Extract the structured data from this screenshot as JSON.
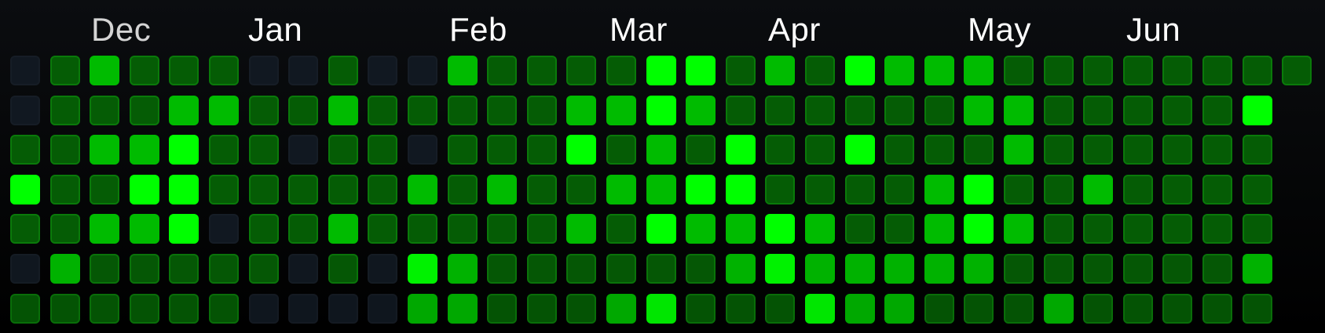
{
  "heatmap": {
    "month_labels": [
      "Dec",
      "Jan",
      "Feb",
      "Mar",
      "Apr",
      "May",
      "Jun"
    ],
    "colors": {
      "level0": "#111821",
      "level1": "#055c05",
      "level2": "#00bb00",
      "level3": "#00ff00",
      "border_active": "#0a7a0a",
      "border_empty": "#161d26"
    },
    "grid": [
      [
        0,
        1,
        2,
        1,
        1,
        1,
        0,
        0,
        1,
        0,
        0,
        2,
        1,
        1,
        1,
        1,
        3,
        3,
        1,
        2,
        1,
        3,
        2,
        2,
        2,
        1,
        1,
        1,
        1,
        1,
        1,
        1,
        1
      ],
      [
        0,
        1,
        1,
        1,
        2,
        2,
        1,
        1,
        2,
        1,
        1,
        1,
        1,
        1,
        2,
        2,
        3,
        2,
        1,
        1,
        1,
        1,
        1,
        1,
        2,
        2,
        1,
        1,
        1,
        1,
        1,
        3,
        null
      ],
      [
        1,
        1,
        2,
        2,
        3,
        1,
        1,
        0,
        1,
        1,
        0,
        1,
        1,
        1,
        3,
        1,
        2,
        1,
        3,
        1,
        1,
        3,
        1,
        1,
        1,
        2,
        1,
        1,
        1,
        1,
        1,
        1,
        null
      ],
      [
        3,
        1,
        1,
        3,
        3,
        1,
        1,
        1,
        1,
        1,
        2,
        1,
        2,
        1,
        1,
        2,
        2,
        3,
        3,
        1,
        1,
        1,
        1,
        2,
        3,
        1,
        1,
        2,
        1,
        1,
        1,
        1,
        null
      ],
      [
        1,
        1,
        2,
        2,
        3,
        0,
        1,
        1,
        2,
        1,
        1,
        1,
        1,
        1,
        2,
        1,
        3,
        2,
        2,
        3,
        2,
        1,
        1,
        2,
        3,
        2,
        1,
        1,
        1,
        1,
        1,
        1,
        null
      ],
      [
        0,
        2,
        1,
        1,
        1,
        1,
        1,
        0,
        1,
        0,
        3,
        2,
        1,
        1,
        1,
        1,
        1,
        1,
        2,
        3,
        2,
        2,
        2,
        2,
        2,
        1,
        1,
        1,
        1,
        1,
        1,
        2,
        null
      ],
      [
        1,
        1,
        1,
        1,
        1,
        1,
        0,
        0,
        0,
        0,
        2,
        2,
        1,
        1,
        1,
        2,
        3,
        1,
        1,
        1,
        3,
        2,
        2,
        1,
        1,
        1,
        2,
        1,
        1,
        1,
        1,
        1,
        null
      ]
    ]
  }
}
